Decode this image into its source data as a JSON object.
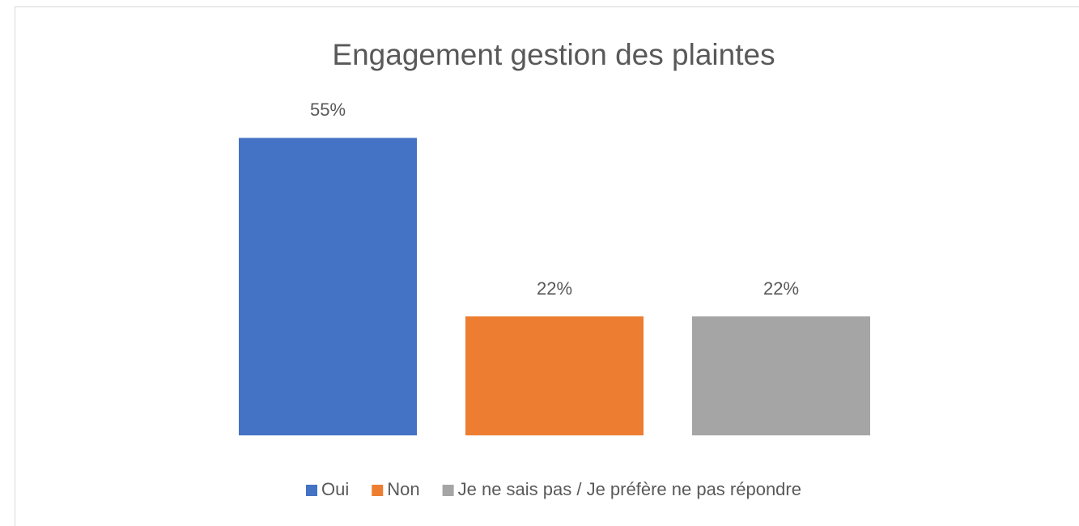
{
  "chart_data": {
    "type": "bar",
    "title": "Engagement gestion des plaintes",
    "categories": [
      null
    ],
    "series": [
      {
        "name": "Oui",
        "color": "#4472c4",
        "values": [
          55
        ],
        "value_labels": [
          "55%"
        ]
      },
      {
        "name": "Non",
        "color": "#ed7d31",
        "values": [
          22
        ],
        "value_labels": [
          "22%"
        ]
      },
      {
        "name": "Je ne sais pas / Je préfère ne pas répondre",
        "color": "#a5a5a5",
        "values": [
          22
        ],
        "value_labels": [
          "22%"
        ]
      }
    ],
    "ylim": [
      0,
      60
    ],
    "legend": "bottom"
  }
}
